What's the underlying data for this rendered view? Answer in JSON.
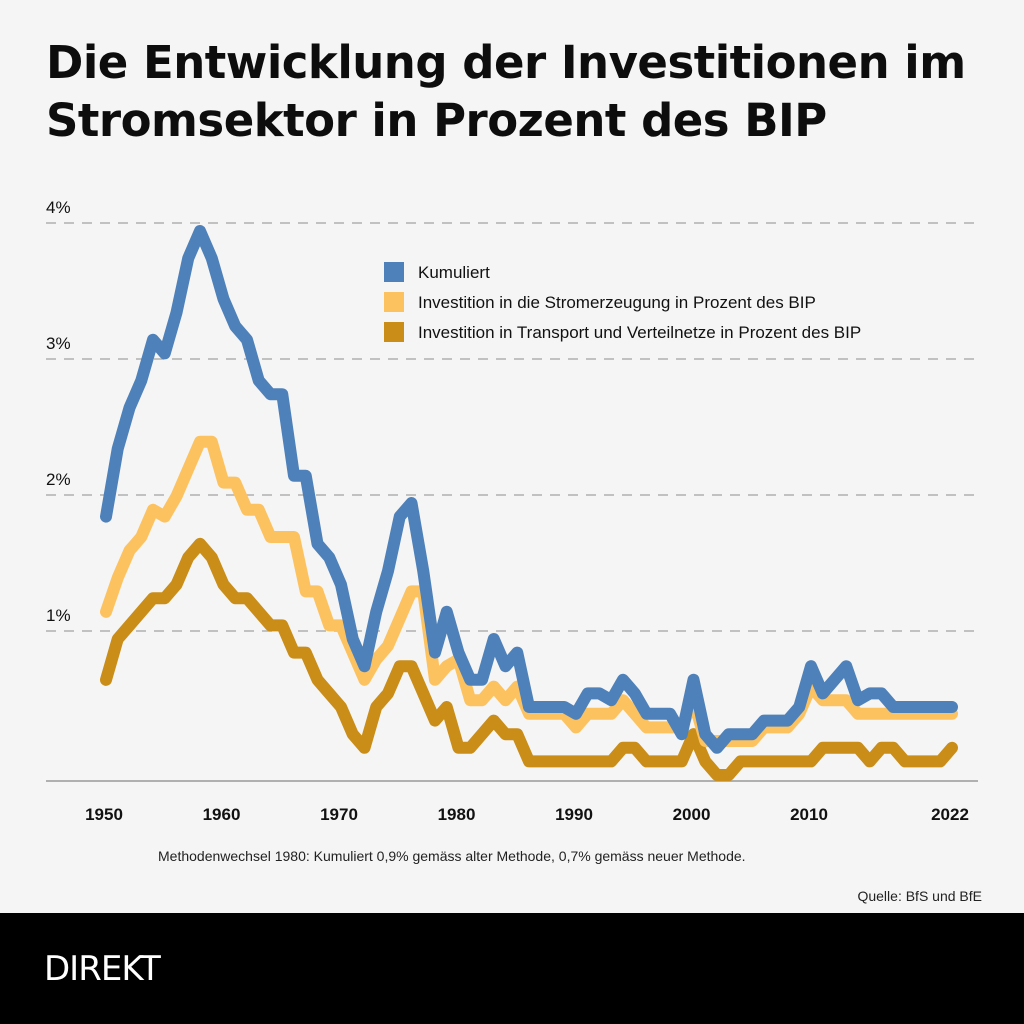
{
  "title": "Die Entwicklung der Investitionen im Stromsektor in Prozent des BIP",
  "footnote": "Methodenwechsel 1980: Kumuliert 0,9% gemäss alter Methode, 0,7% gemäss neuer Methode.",
  "source": "Quelle: BfS und BfE",
  "brand": "DIREKT",
  "chart_data": {
    "type": "line",
    "title": "Die Entwicklung der Investitionen im Stromsektor in Prozent des BIP",
    "xlabel": "",
    "ylabel": "",
    "x": [
      1950,
      1951,
      1952,
      1953,
      1954,
      1955,
      1956,
      1957,
      1958,
      1959,
      1960,
      1961,
      1962,
      1963,
      1964,
      1965,
      1966,
      1967,
      1968,
      1969,
      1970,
      1971,
      1972,
      1973,
      1974,
      1975,
      1976,
      1977,
      1978,
      1979,
      1980,
      1981,
      1982,
      1983,
      1984,
      1985,
      1986,
      1987,
      1988,
      1989,
      1990,
      1991,
      1992,
      1993,
      1994,
      1995,
      1996,
      1997,
      1998,
      1999,
      2000,
      2001,
      2002,
      2003,
      2004,
      2005,
      2006,
      2007,
      2008,
      2009,
      2010,
      2011,
      2012,
      2013,
      2014,
      2015,
      2016,
      2017,
      2018,
      2019,
      2020,
      2021,
      2022
    ],
    "xticks": [
      "1950",
      "1960",
      "1970",
      "1980",
      "1990",
      "2000",
      "2010",
      "2022"
    ],
    "xtick_values": [
      1950,
      1960,
      1970,
      1980,
      1990,
      2000,
      2010,
      2022
    ],
    "yticks": [
      "1%",
      "2%",
      "3%",
      "4%"
    ],
    "ytick_values": [
      1,
      2,
      3,
      4
    ],
    "ylim": [
      0,
      4.1
    ],
    "xlim": [
      1950,
      2022
    ],
    "grid": "horizontal-dashed",
    "legend_position": "top-right",
    "series": [
      {
        "name": "Kumuliert",
        "color": "#4e81b9",
        "values": [
          1.9,
          2.4,
          2.7,
          2.9,
          3.2,
          3.1,
          3.4,
          3.8,
          4.0,
          3.8,
          3.5,
          3.3,
          3.2,
          2.9,
          2.8,
          2.8,
          2.2,
          2.2,
          1.7,
          1.6,
          1.4,
          1.0,
          0.8,
          1.2,
          1.5,
          1.9,
          2.0,
          1.5,
          0.9,
          1.2,
          0.9,
          0.7,
          0.7,
          1.0,
          0.8,
          0.9,
          0.5,
          0.5,
          0.5,
          0.5,
          0.45,
          0.6,
          0.6,
          0.55,
          0.7,
          0.6,
          0.45,
          0.45,
          0.45,
          0.3,
          0.7,
          0.3,
          0.2,
          0.3,
          0.3,
          0.3,
          0.4,
          0.4,
          0.4,
          0.5,
          0.8,
          0.6,
          0.7,
          0.8,
          0.55,
          0.6,
          0.6,
          0.5,
          0.5,
          0.5,
          0.5,
          0.5,
          0.5
        ]
      },
      {
        "name": "Investition in die Stromerzeugung in Prozent des BIP",
        "color": "#fdc260",
        "values": [
          1.2,
          1.45,
          1.65,
          1.75,
          1.95,
          1.9,
          2.05,
          2.25,
          2.45,
          2.45,
          2.15,
          2.15,
          1.95,
          1.95,
          1.75,
          1.75,
          1.75,
          1.35,
          1.35,
          1.1,
          1.1,
          0.9,
          0.7,
          0.85,
          0.95,
          1.15,
          1.35,
          1.35,
          0.7,
          0.8,
          0.85,
          0.55,
          0.55,
          0.65,
          0.55,
          0.65,
          0.45,
          0.45,
          0.45,
          0.45,
          0.35,
          0.45,
          0.45,
          0.45,
          0.55,
          0.45,
          0.35,
          0.35,
          0.35,
          0.35,
          0.55,
          0.25,
          0.25,
          0.25,
          0.25,
          0.25,
          0.35,
          0.35,
          0.35,
          0.45,
          0.65,
          0.55,
          0.55,
          0.55,
          0.45,
          0.45,
          0.45,
          0.45,
          0.45,
          0.45,
          0.45,
          0.45,
          0.45
        ]
      },
      {
        "name": "Investition in Transport und Verteilnetze in Prozent des BIP",
        "color": "#c98d18",
        "values": [
          0.7,
          1.0,
          1.1,
          1.2,
          1.3,
          1.3,
          1.4,
          1.6,
          1.7,
          1.6,
          1.4,
          1.3,
          1.3,
          1.2,
          1.1,
          1.1,
          0.9,
          0.9,
          0.7,
          0.6,
          0.5,
          0.3,
          0.2,
          0.5,
          0.6,
          0.8,
          0.8,
          0.6,
          0.4,
          0.5,
          0.2,
          0.2,
          0.3,
          0.4,
          0.3,
          0.3,
          0.1,
          0.1,
          0.1,
          0.1,
          0.1,
          0.1,
          0.1,
          0.1,
          0.2,
          0.2,
          0.1,
          0.1,
          0.1,
          0.1,
          0.3,
          0.1,
          0.0,
          0.0,
          0.1,
          0.1,
          0.1,
          0.1,
          0.1,
          0.1,
          0.1,
          0.2,
          0.2,
          0.2,
          0.2,
          0.1,
          0.2,
          0.2,
          0.1,
          0.1,
          0.1,
          0.1,
          0.2
        ]
      }
    ]
  }
}
